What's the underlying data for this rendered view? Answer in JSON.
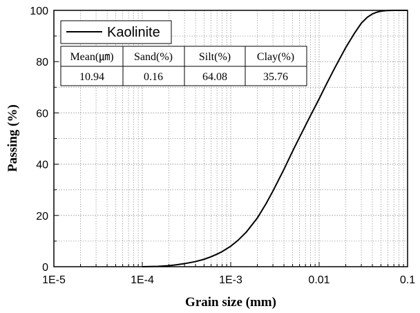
{
  "chart_data": {
    "type": "line",
    "xlabel": "Grain size (mm)",
    "ylabel": "Passing (%)",
    "x_scale": "log",
    "xlim": [
      1e-05,
      0.1
    ],
    "ylim": [
      0,
      100
    ],
    "x_ticks": [
      "1E-5",
      "1E-4",
      "1E-3",
      "0.01",
      "0.1"
    ],
    "y_ticks": [
      "0",
      "20",
      "40",
      "60",
      "80",
      "100"
    ],
    "grid": "dotted, major and minor",
    "legend_position": "top-left",
    "series": [
      {
        "name": "Kaolinite",
        "color": "#000000",
        "x": [
          0.0001,
          0.00012,
          0.00015,
          0.0002,
          0.00025,
          0.0003,
          0.0004,
          0.0005,
          0.0006,
          0.0007,
          0.0008,
          0.001,
          0.0012,
          0.0015,
          0.002,
          0.0025,
          0.003,
          0.004,
          0.005,
          0.006,
          0.008,
          0.01,
          0.012,
          0.015,
          0.02,
          0.025,
          0.03,
          0.035,
          0.04,
          0.045,
          0.05,
          0.06,
          0.07,
          0.08,
          0.1
        ],
        "values": [
          0,
          0.05,
          0.15,
          0.4,
          0.8,
          1.2,
          2.0,
          2.9,
          3.9,
          4.9,
          5.9,
          8.0,
          10.2,
          13.5,
          19,
          24.5,
          29.5,
          38,
          45,
          50.5,
          59,
          65.5,
          71,
          77.5,
          85.5,
          91,
          95,
          97.3,
          98.6,
          99.3,
          99.7,
          99.95,
          100,
          100,
          100
        ]
      }
    ],
    "summary_table": {
      "headers": [
        "Mean(㎛)",
        "Sand(%)",
        "Silt(%)",
        "Clay(%)"
      ],
      "values": [
        "10.94",
        "0.16",
        "64.08",
        "35.76"
      ]
    }
  }
}
